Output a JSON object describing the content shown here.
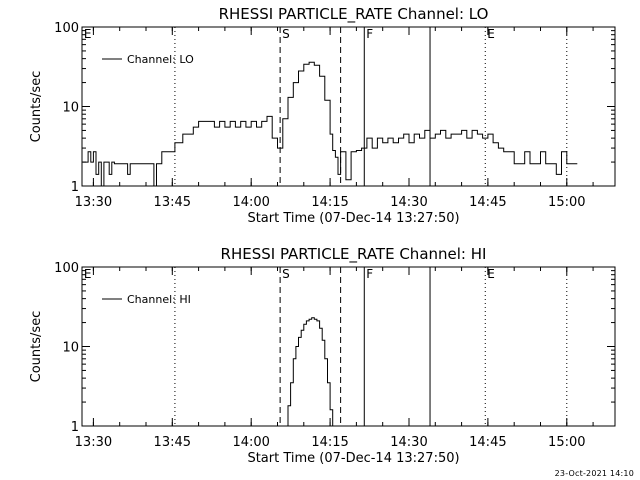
{
  "footer_text": "23-Oct-2021 14:10",
  "colors": {
    "background": "#ffffff",
    "foreground": "#000000"
  },
  "chart_data": [
    {
      "type": "line",
      "title": "RHESSI PARTICLE_RATE Channel: LO",
      "xlabel": "Start Time (07-Dec-14 13:27:50)",
      "ylabel": "Counts/sec",
      "yscale": "log",
      "ylim": [
        1,
        100
      ],
      "xlim": [
        "13:27:50",
        "15:09:10"
      ],
      "xticks": [
        "13:30",
        "13:45",
        "14:00",
        "14:15",
        "14:30",
        "14:45",
        "15:00"
      ],
      "yticks": [
        "1",
        "10",
        "100"
      ],
      "legend": {
        "position": "top-left",
        "entries": [
          "Channel: LO"
        ]
      },
      "grid": false,
      "markers": [
        {
          "time": "13:45:30",
          "label": "",
          "style": "dotted"
        },
        {
          "time": "14:05:30",
          "label": "S",
          "style": "dashed"
        },
        {
          "time": "14:17:00",
          "label": "",
          "style": "dashed"
        },
        {
          "time": "14:21:30",
          "label": "F",
          "style": "solid"
        },
        {
          "time": "14:34:00",
          "label": "",
          "style": "solid"
        },
        {
          "time": "14:44:30",
          "label": "E",
          "style": "dotted"
        },
        {
          "time": "15:00:00",
          "label": "",
          "style": "dotted"
        }
      ],
      "edge_labels": [
        {
          "time": "13:28:00",
          "label": "E"
        }
      ],
      "series": [
        {
          "name": "Channel: LO",
          "x": [
            "13:28",
            "13:29",
            "13:29:30",
            "13:30",
            "13:30:30",
            "13:31",
            "13:31:30",
            "13:32",
            "13:33",
            "13:33:30",
            "13:34",
            "13:35",
            "13:36",
            "13:36:30",
            "13:37",
            "13:38",
            "13:39",
            "13:40",
            "13:41",
            "13:41:30",
            "13:42",
            "13:43",
            "13:44",
            "13:45",
            "13:45:30",
            "13:46",
            "13:47",
            "13:48",
            "13:49",
            "13:50",
            "13:51",
            "13:52",
            "13:53",
            "13:54",
            "13:55",
            "13:56",
            "13:57",
            "13:58",
            "13:59",
            "14:00",
            "14:01",
            "14:02",
            "14:03",
            "14:04",
            "14:05",
            "14:06",
            "14:07",
            "14:08",
            "14:09",
            "14:10",
            "14:11",
            "14:12",
            "14:13",
            "14:14",
            "14:15",
            "14:15:30",
            "14:16",
            "14:16:30",
            "14:17",
            "14:18",
            "14:19",
            "14:20",
            "14:21",
            "14:22",
            "14:23",
            "14:24",
            "14:25",
            "14:26",
            "14:27",
            "14:28",
            "14:29",
            "14:30",
            "14:31",
            "14:32",
            "14:33",
            "14:34",
            "14:35",
            "14:36",
            "14:37",
            "14:38",
            "14:39",
            "14:40",
            "14:41",
            "14:42",
            "14:43",
            "14:44",
            "14:45",
            "14:46",
            "14:47",
            "14:48",
            "14:49",
            "14:50",
            "14:51",
            "14:52",
            "14:53",
            "14:54",
            "14:55",
            "14:56",
            "14:57",
            "14:58",
            "14:59",
            "15:00",
            "15:01",
            "15:02"
          ],
          "values": [
            2,
            2.7,
            2,
            2.7,
            1.4,
            2,
            1,
            2,
            1.4,
            2,
            1.9,
            1.9,
            1.9,
            1.4,
            1.9,
            1.9,
            1.9,
            1.9,
            1.9,
            1.0,
            1.9,
            2.7,
            2.7,
            2.7,
            3.5,
            3.5,
            4.5,
            4.5,
            5.5,
            6.5,
            6.5,
            6.5,
            5.5,
            6.5,
            5.5,
            6.5,
            5.5,
            6.5,
            5.5,
            6.5,
            5.5,
            6.5,
            7.5,
            4.0,
            3.0,
            7.0,
            13,
            20,
            28,
            34,
            36,
            33,
            24,
            12,
            4.5,
            2.8,
            2.3,
            1.4,
            2.7,
            1.2,
            2.7,
            2.8,
            3.0,
            4.0,
            3.0,
            4.0,
            3.5,
            4.0,
            3.5,
            4.0,
            4.5,
            3.5,
            4.5,
            4.0,
            5.0,
            4.0,
            4.5,
            5.0,
            4.0,
            4.5,
            4.5,
            5.0,
            4.0,
            5.0,
            4.5,
            4.0,
            4.5,
            3.5,
            3.0,
            2.7,
            2.7,
            1.9,
            1.9,
            2.7,
            1.9,
            1.9,
            2.7,
            1.9,
            1.9,
            1.4,
            2.7,
            1.9,
            1.9,
            1.9
          ]
        }
      ]
    },
    {
      "type": "line",
      "title": "RHESSI PARTICLE_RATE Channel: HI",
      "xlabel": "Start Time (07-Dec-14 13:27:50)",
      "ylabel": "Counts/sec",
      "yscale": "log",
      "ylim": [
        1,
        100
      ],
      "xlim": [
        "13:27:50",
        "15:09:10"
      ],
      "xticks": [
        "13:30",
        "13:45",
        "14:00",
        "14:15",
        "14:30",
        "14:45",
        "15:00"
      ],
      "yticks": [
        "1",
        "10",
        "100"
      ],
      "legend": {
        "position": "top-left",
        "entries": [
          "Channel: HI"
        ]
      },
      "grid": false,
      "markers": [
        {
          "time": "13:45:30",
          "label": "",
          "style": "dotted"
        },
        {
          "time": "14:05:30",
          "label": "S",
          "style": "dashed"
        },
        {
          "time": "14:17:00",
          "label": "",
          "style": "dashed"
        },
        {
          "time": "14:21:30",
          "label": "F",
          "style": "solid"
        },
        {
          "time": "14:34:00",
          "label": "",
          "style": "solid"
        },
        {
          "time": "14:44:30",
          "label": "E",
          "style": "dotted"
        },
        {
          "time": "15:00:00",
          "label": "",
          "style": "dotted"
        }
      ],
      "edge_labels": [
        {
          "time": "13:28:00",
          "label": "E"
        }
      ],
      "series": [
        {
          "name": "Channel: HI",
          "x": [
            "14:06:30",
            "14:07",
            "14:07:30",
            "14:08",
            "14:08:30",
            "14:09",
            "14:09:30",
            "14:10",
            "14:10:30",
            "14:11",
            "14:11:30",
            "14:12",
            "14:12:30",
            "14:13",
            "14:13:30",
            "14:14",
            "14:14:30",
            "14:15",
            "14:15:30"
          ],
          "values": [
            1.0,
            1.8,
            3.5,
            7,
            10,
            13,
            16,
            19,
            21,
            22,
            23,
            22,
            21,
            17,
            12,
            7,
            3.5,
            1.6,
            1.0
          ]
        }
      ]
    }
  ]
}
